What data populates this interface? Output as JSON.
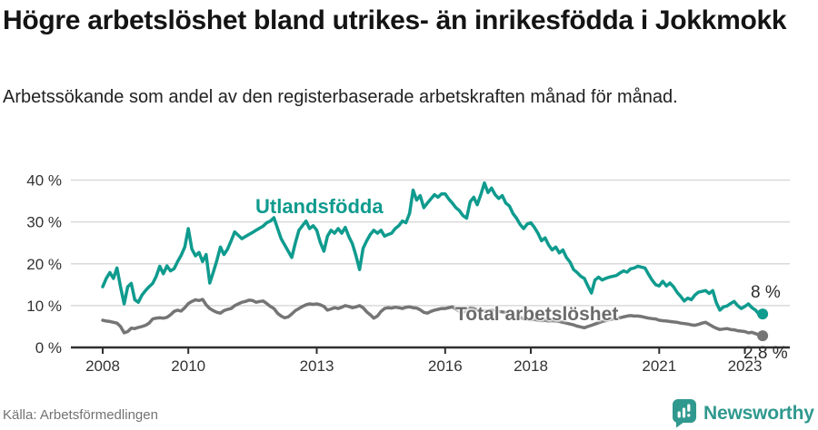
{
  "chart_data": {
    "type": "line",
    "title": "Högre arbetslöshet bland utrikes- än inrikesfödda i Jokkmokk",
    "subtitle": "Arbetssökande som andel av den registerbaserade arbetskraften månad för månad.",
    "source": "Källa: Arbetsförmedlingen",
    "x_start": 2008,
    "frequency": "monthly",
    "xlim": [
      2007.25,
      2024.1
    ],
    "ylim": [
      0,
      40
    ],
    "y_suffix": " %",
    "y_ticks": [
      0,
      10,
      20,
      30,
      40
    ],
    "x_ticks": [
      2008,
      2010,
      2013,
      2016,
      2018,
      2021,
      2023
    ],
    "grid": "horizontal",
    "legend_position": "inline-labels",
    "series": [
      {
        "name": "Utlandsfödda",
        "color": "#0f9b8e",
        "end_label": "8 %",
        "values": [
          14.5,
          16.5,
          17.9,
          16.5,
          19.0,
          14.5,
          10.4,
          14.5,
          15.3,
          11.4,
          10.8,
          12.5,
          13.6,
          14.5,
          15.3,
          17.0,
          19.4,
          17.6,
          19.5,
          18.3,
          18.8,
          20.5,
          22.0,
          24.0,
          28.4,
          23.5,
          21.9,
          22.7,
          20.5,
          22.2,
          15.4,
          18.0,
          20.8,
          24.0,
          22.2,
          23.5,
          25.5,
          27.6,
          26.8,
          26.0,
          26.5,
          27.0,
          27.5,
          28.0,
          28.5,
          29.0,
          29.8,
          30.2,
          31.0,
          28.5,
          26.0,
          24.5,
          23.0,
          21.5,
          25.0,
          28.0,
          29.1,
          30.2,
          28.4,
          29.1,
          28.0,
          25.1,
          23.0,
          26.6,
          28.0,
          27.3,
          28.4,
          27.3,
          28.7,
          26.5,
          24.8,
          21.9,
          18.6,
          23.7,
          25.5,
          27.0,
          28.0,
          27.3,
          28.0,
          26.6,
          27.0,
          27.3,
          28.4,
          29.1,
          30.2,
          29.8,
          32.0,
          37.6,
          35.2,
          36.3,
          33.4,
          34.5,
          35.5,
          36.5,
          35.9,
          36.7,
          36.7,
          35.5,
          34.5,
          33.4,
          32.7,
          31.5,
          30.9,
          34.8,
          35.9,
          34.1,
          36.5,
          39.3,
          37.0,
          38.1,
          36.5,
          35.6,
          36.3,
          34.5,
          33.8,
          32.0,
          30.9,
          29.4,
          28.4,
          29.5,
          29.8,
          28.7,
          27.3,
          25.5,
          26.2,
          24.5,
          23.3,
          24.0,
          22.6,
          23.3,
          21.5,
          20.4,
          18.6,
          17.9,
          17.0,
          16.5,
          14.7,
          13.0,
          16.1,
          16.8,
          16.1,
          16.5,
          16.8,
          17.0,
          17.2,
          17.8,
          18.3,
          18.0,
          18.8,
          19.0,
          19.4,
          19.2,
          19.0,
          17.5,
          16.1,
          15.0,
          14.7,
          15.8,
          14.7,
          15.4,
          14.5,
          13.2,
          12.2,
          11.1,
          11.8,
          11.4,
          12.5,
          13.2,
          13.4,
          13.6,
          12.9,
          13.6,
          10.7,
          8.9,
          9.7,
          9.9,
          10.5,
          11.0,
          10.0,
          9.3,
          9.8,
          10.4,
          9.5,
          8.9,
          7.9,
          8.0
        ]
      },
      {
        "name": "Total arbetslöshet",
        "color": "#757575",
        "end_label": "2,8 %",
        "values": [
          6.5,
          6.3,
          6.2,
          6.0,
          5.8,
          5.0,
          3.5,
          3.8,
          4.6,
          4.5,
          4.8,
          5.0,
          5.3,
          5.8,
          6.8,
          7.0,
          7.1,
          7.0,
          7.2,
          7.8,
          8.6,
          8.9,
          8.7,
          9.5,
          10.5,
          11.0,
          11.4,
          11.2,
          11.5,
          10.2,
          9.3,
          8.8,
          8.4,
          8.2,
          8.8,
          9.1,
          9.3,
          10.0,
          10.4,
          10.8,
          11.0,
          11.3,
          11.2,
          10.8,
          11.0,
          11.1,
          10.5,
          9.8,
          9.3,
          8.2,
          7.5,
          7.1,
          7.3,
          8.0,
          8.8,
          9.3,
          9.8,
          10.2,
          10.4,
          10.3,
          10.4,
          10.2,
          9.8,
          8.9,
          9.2,
          9.5,
          9.3,
          9.6,
          10.0,
          9.8,
          9.5,
          9.7,
          10.0,
          9.5,
          8.5,
          7.8,
          7.0,
          7.5,
          8.6,
          9.3,
          9.5,
          9.4,
          9.6,
          9.5,
          9.3,
          9.6,
          9.7,
          9.5,
          9.4,
          9.0,
          8.4,
          8.2,
          8.6,
          8.9,
          9.1,
          9.3,
          9.3,
          9.5,
          9.7,
          9.2,
          8.6,
          8.4,
          8.9,
          9.4,
          9.3,
          9.0,
          8.8,
          8.7,
          8.8,
          8.9,
          8.7,
          8.6,
          8.5,
          8.4,
          8.2,
          8.0,
          7.6,
          7.2,
          6.9,
          6.7,
          6.6,
          6.7,
          6.5,
          6.4,
          6.5,
          6.3,
          6.4,
          6.3,
          6.2,
          6.0,
          5.8,
          5.6,
          5.4,
          5.1,
          4.9,
          4.7,
          5.0,
          5.3,
          5.6,
          5.9,
          6.2,
          6.4,
          6.6,
          6.8,
          6.9,
          7.1,
          7.3,
          7.5,
          7.6,
          7.5,
          7.5,
          7.4,
          7.2,
          7.0,
          6.9,
          6.8,
          6.5,
          6.4,
          6.3,
          6.2,
          6.1,
          6.0,
          5.8,
          5.7,
          5.6,
          5.4,
          5.3,
          5.5,
          5.8,
          6.0,
          5.5,
          5.0,
          4.6,
          4.3,
          4.4,
          4.5,
          4.3,
          4.2,
          4.0,
          3.9,
          3.8,
          3.5,
          3.6,
          3.3,
          3.0,
          2.8
        ]
      }
    ]
  },
  "footer": {
    "brand": "Newsworthy"
  },
  "colors": {
    "accent_teal": "#0f9b8e",
    "logo_teal": "#30998f",
    "line_gray": "#757575",
    "grid": "#d9d9d9",
    "axis": "#2f2f2f"
  }
}
